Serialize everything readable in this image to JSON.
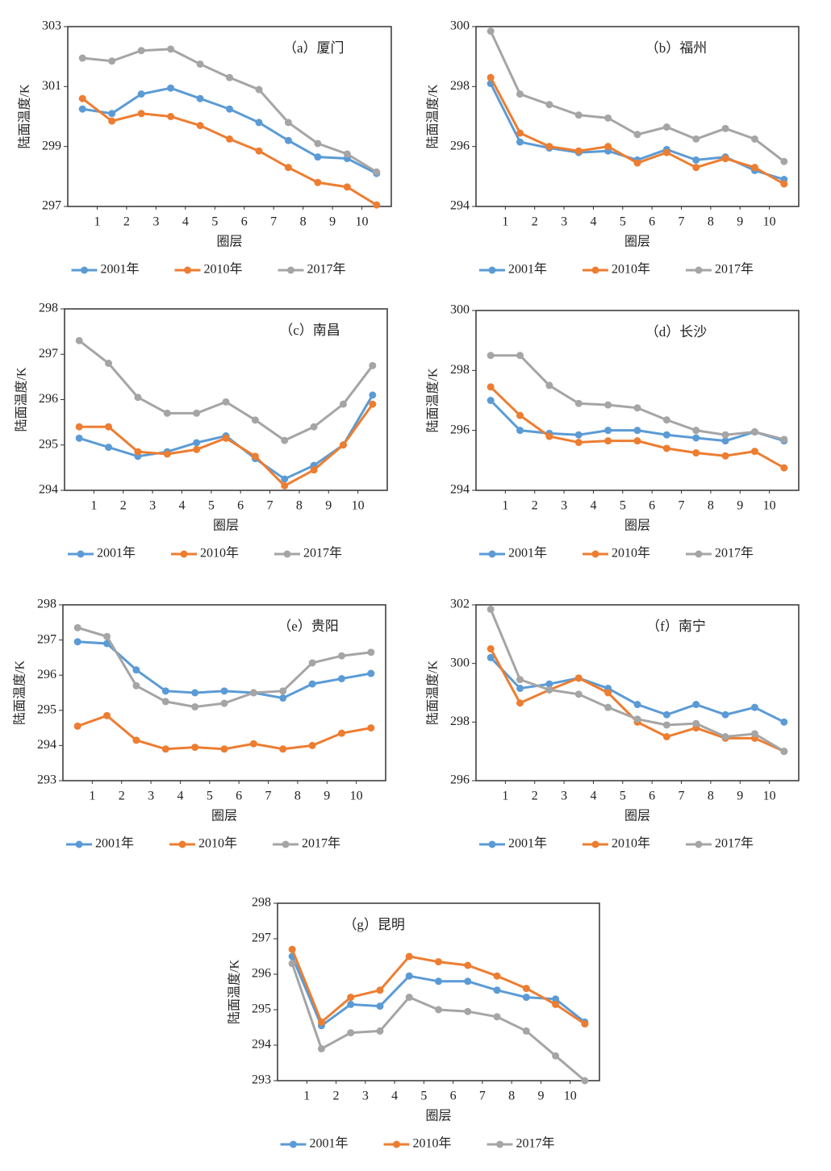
{
  "chart_data": [
    {
      "type": "line",
      "title": "（a）厦门",
      "xlabel": "圈层",
      "ylabel": "陆面温度/K",
      "x": [
        0.5,
        1.5,
        2.5,
        3.5,
        4.5,
        5.5,
        6.5,
        7.5,
        8.5,
        9.5,
        10.5
      ],
      "xlim": [
        0,
        11
      ],
      "xticks": [
        1,
        2,
        3,
        4,
        5,
        6,
        7,
        8,
        9,
        10
      ],
      "ylim": [
        297,
        303
      ],
      "yticks": [
        297,
        299,
        301,
        303
      ],
      "series": [
        {
          "name": "2001年",
          "color": "#5b9bd5",
          "values": [
            300.25,
            300.1,
            300.75,
            300.95,
            300.6,
            300.25,
            299.8,
            299.2,
            298.65,
            298.6,
            298.1
          ]
        },
        {
          "name": "2010年",
          "color": "#ed7d31",
          "values": [
            300.6,
            299.85,
            300.1,
            300.0,
            299.7,
            299.25,
            298.85,
            298.3,
            297.8,
            297.65,
            297.05
          ]
        },
        {
          "name": "2017年",
          "color": "#a5a5a5",
          "values": [
            301.95,
            301.85,
            302.2,
            302.25,
            301.75,
            301.3,
            300.9,
            299.8,
            299.1,
            298.75,
            298.15
          ]
        }
      ]
    },
    {
      "type": "line",
      "title": "（b）福州",
      "xlabel": "圈层",
      "ylabel": "陆面温度/K",
      "x": [
        0.5,
        1.5,
        2.5,
        3.5,
        4.5,
        5.5,
        6.5,
        7.5,
        8.5,
        9.5,
        10.5
      ],
      "xlim": [
        0,
        11
      ],
      "xticks": [
        1,
        2,
        3,
        4,
        5,
        6,
        7,
        8,
        9,
        10
      ],
      "ylim": [
        294,
        300
      ],
      "yticks": [
        294,
        296,
        298,
        300
      ],
      "series": [
        {
          "name": "2001年",
          "color": "#5b9bd5",
          "values": [
            298.1,
            296.15,
            295.95,
            295.8,
            295.85,
            295.55,
            295.9,
            295.55,
            295.65,
            295.2,
            294.9
          ]
        },
        {
          "name": "2010年",
          "color": "#ed7d31",
          "values": [
            298.3,
            296.45,
            296.0,
            295.85,
            296.0,
            295.45,
            295.8,
            295.3,
            295.6,
            295.3,
            294.75
          ]
        },
        {
          "name": "2017年",
          "color": "#a5a5a5",
          "values": [
            299.85,
            297.75,
            297.4,
            297.05,
            296.95,
            296.4,
            296.65,
            296.25,
            296.6,
            296.25,
            295.5
          ]
        }
      ]
    },
    {
      "type": "line",
      "title": "（c）南昌",
      "xlabel": "圈层",
      "ylabel": "陆面温度/K",
      "x": [
        0.5,
        1.5,
        2.5,
        3.5,
        4.5,
        5.5,
        6.5,
        7.5,
        8.5,
        9.5,
        10.5
      ],
      "xlim": [
        0,
        11
      ],
      "xticks": [
        1,
        2,
        3,
        4,
        5,
        6,
        7,
        8,
        9,
        10
      ],
      "ylim": [
        294,
        298
      ],
      "yticks": [
        294,
        295,
        296,
        297,
        298
      ],
      "series": [
        {
          "name": "2001年",
          "color": "#5b9bd5",
          "values": [
            295.15,
            294.95,
            294.75,
            294.85,
            295.05,
            295.2,
            294.7,
            294.25,
            294.55,
            295.0,
            296.1
          ]
        },
        {
          "name": "2010年",
          "color": "#ed7d31",
          "values": [
            295.4,
            295.4,
            294.85,
            294.8,
            294.9,
            295.15,
            294.75,
            294.1,
            294.45,
            295.0,
            295.9
          ]
        },
        {
          "name": "2017年",
          "color": "#a5a5a5",
          "values": [
            297.3,
            296.8,
            296.05,
            295.7,
            295.7,
            295.95,
            295.55,
            295.1,
            295.4,
            295.9,
            296.75
          ]
        }
      ]
    },
    {
      "type": "line",
      "title": "（d）长沙",
      "xlabel": "圈层",
      "ylabel": "陆面温度/K",
      "x": [
        0.5,
        1.5,
        2.5,
        3.5,
        4.5,
        5.5,
        6.5,
        7.5,
        8.5,
        9.5,
        10.5
      ],
      "xlim": [
        0,
        11
      ],
      "xticks": [
        1,
        2,
        3,
        4,
        5,
        6,
        7,
        8,
        9,
        10
      ],
      "ylim": [
        294,
        300
      ],
      "yticks": [
        294,
        296,
        298,
        300
      ],
      "series": [
        {
          "name": "2001年",
          "color": "#5b9bd5",
          "values": [
            297.0,
            296.0,
            295.9,
            295.85,
            296.0,
            296.0,
            295.85,
            295.75,
            295.65,
            295.95,
            295.65
          ]
        },
        {
          "name": "2010年",
          "color": "#ed7d31",
          "values": [
            297.45,
            296.5,
            295.8,
            295.6,
            295.65,
            295.65,
            295.4,
            295.25,
            295.15,
            295.3,
            294.75
          ]
        },
        {
          "name": "2017年",
          "color": "#a5a5a5",
          "values": [
            298.5,
            298.5,
            297.5,
            296.9,
            296.85,
            296.75,
            296.35,
            296.0,
            295.85,
            295.95,
            295.7
          ]
        }
      ]
    },
    {
      "type": "line",
      "title": "（e）贵阳",
      "xlabel": "圈层",
      "ylabel": "陆面温度/K",
      "x": [
        0.5,
        1.5,
        2.5,
        3.5,
        4.5,
        5.5,
        6.5,
        7.5,
        8.5,
        9.5,
        10.5
      ],
      "xlim": [
        0,
        11
      ],
      "xticks": [
        1,
        2,
        3,
        4,
        5,
        6,
        7,
        8,
        9,
        10
      ],
      "ylim": [
        293,
        298
      ],
      "yticks": [
        293,
        294,
        295,
        296,
        297,
        298
      ],
      "series": [
        {
          "name": "2001年",
          "color": "#5b9bd5",
          "values": [
            296.95,
            296.9,
            296.15,
            295.55,
            295.5,
            295.55,
            295.5,
            295.35,
            295.75,
            295.9,
            296.05
          ]
        },
        {
          "name": "2010年",
          "color": "#ed7d31",
          "values": [
            294.55,
            294.85,
            294.15,
            293.9,
            293.95,
            293.9,
            294.05,
            293.9,
            294.0,
            294.35,
            294.5
          ]
        },
        {
          "name": "2017年",
          "color": "#a5a5a5",
          "values": [
            297.35,
            297.1,
            295.7,
            295.25,
            295.1,
            295.2,
            295.5,
            295.55,
            296.35,
            296.55,
            296.65
          ]
        }
      ]
    },
    {
      "type": "line",
      "title": "（f）南宁",
      "xlabel": "圈层",
      "ylabel": "陆面温度/K",
      "x": [
        0.5,
        1.5,
        2.5,
        3.5,
        4.5,
        5.5,
        6.5,
        7.5,
        8.5,
        9.5,
        10.5
      ],
      "xlim": [
        0,
        11
      ],
      "xticks": [
        1,
        2,
        3,
        4,
        5,
        6,
        7,
        8,
        9,
        10
      ],
      "ylim": [
        296,
        302
      ],
      "yticks": [
        296,
        298,
        300,
        302
      ],
      "series": [
        {
          "name": "2001年",
          "color": "#5b9bd5",
          "values": [
            300.2,
            299.15,
            299.3,
            299.5,
            299.15,
            298.6,
            298.25,
            298.6,
            298.25,
            298.5,
            298.0
          ]
        },
        {
          "name": "2010年",
          "color": "#ed7d31",
          "values": [
            300.5,
            298.65,
            299.1,
            299.5,
            299.0,
            298.0,
            297.5,
            297.8,
            297.45,
            297.45,
            297.0
          ]
        },
        {
          "name": "2017年",
          "color": "#a5a5a5",
          "values": [
            301.85,
            299.45,
            299.1,
            298.95,
            298.5,
            298.1,
            297.9,
            297.95,
            297.5,
            297.6,
            297.0
          ]
        }
      ]
    },
    {
      "type": "line",
      "title": "（g）昆明",
      "xlabel": "圈层",
      "ylabel": "陆面温度/K",
      "x": [
        0.5,
        1.5,
        2.5,
        3.5,
        4.5,
        5.5,
        6.5,
        7.5,
        8.5,
        9.5,
        10.5
      ],
      "xlim": [
        0,
        11
      ],
      "xticks": [
        1,
        2,
        3,
        4,
        5,
        6,
        7,
        8,
        9,
        10
      ],
      "ylim": [
        293,
        298
      ],
      "yticks": [
        293,
        294,
        295,
        296,
        297,
        298
      ],
      "series": [
        {
          "name": "2001年",
          "color": "#5b9bd5",
          "values": [
            296.5,
            294.55,
            295.15,
            295.1,
            295.95,
            295.8,
            295.8,
            295.55,
            295.35,
            295.3,
            294.65
          ]
        },
        {
          "name": "2010年",
          "color": "#ed7d31",
          "values": [
            296.7,
            294.65,
            295.35,
            295.55,
            296.5,
            296.35,
            296.25,
            295.95,
            295.6,
            295.15,
            294.6
          ]
        },
        {
          "name": "2017年",
          "color": "#a5a5a5",
          "values": [
            296.3,
            293.9,
            294.35,
            294.4,
            295.35,
            295.0,
            294.95,
            294.8,
            294.4,
            293.7,
            293.0
          ]
        }
      ]
    }
  ]
}
